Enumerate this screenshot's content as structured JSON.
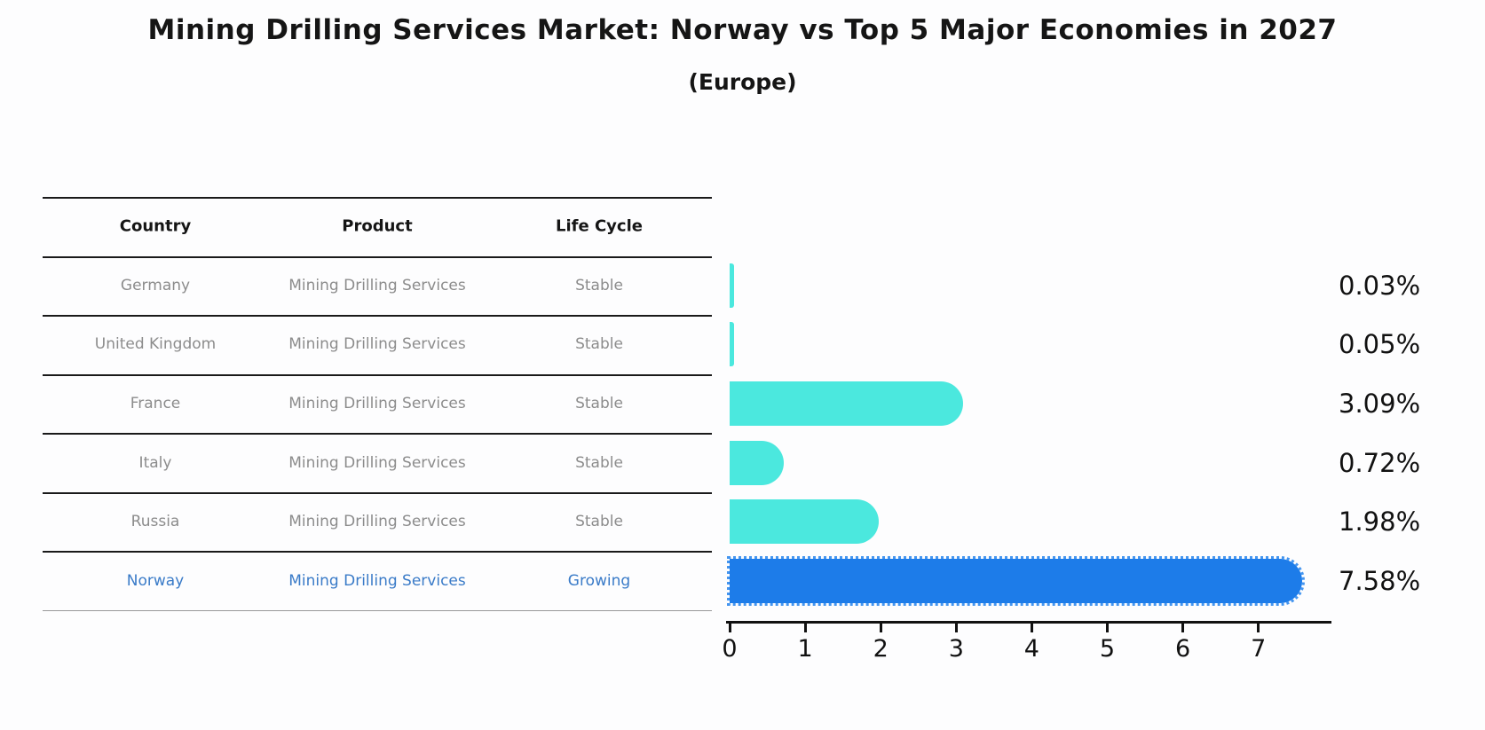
{
  "title": "Mining Drilling Services Market: Norway vs Top 5 Major Economies in 2027",
  "subtitle": "(Europe)",
  "table": {
    "headers": [
      "Country",
      "Product",
      "Life Cycle"
    ],
    "rows": [
      {
        "country": "Germany",
        "product": "Mining Drilling Services",
        "life_cycle": "Stable",
        "highlight": false
      },
      {
        "country": "United Kingdom",
        "product": "Mining Drilling Services",
        "life_cycle": "Stable",
        "highlight": false
      },
      {
        "country": "France",
        "product": "Mining Drilling Services",
        "life_cycle": "Stable",
        "highlight": false
      },
      {
        "country": "Italy",
        "product": "Mining Drilling Services",
        "life_cycle": "Stable",
        "highlight": false
      },
      {
        "country": "Russia",
        "product": "Mining Drilling Services",
        "life_cycle": "Stable",
        "highlight": false
      },
      {
        "country": "Norway",
        "product": "Mining Drilling Services",
        "life_cycle": "Growing",
        "highlight": true
      }
    ]
  },
  "chart_data": {
    "type": "bar",
    "orientation": "horizontal",
    "title": "Mining Drilling Services Market: Norway vs Top 5 Major Economies in 2027",
    "subtitle": "(Europe)",
    "categories": [
      "Germany",
      "United Kingdom",
      "France",
      "Italy",
      "Russia",
      "Norway"
    ],
    "values": [
      0.03,
      0.05,
      3.09,
      0.72,
      1.98,
      7.58
    ],
    "value_labels": [
      "0.03%",
      "0.05%",
      "3.09%",
      "0.72%",
      "1.98%",
      "7.58%"
    ],
    "x_ticks": [
      0,
      1,
      2,
      3,
      4,
      5,
      6,
      7
    ],
    "x_tick_labels": [
      "0",
      "1",
      "2",
      "3",
      "4",
      "5",
      "6",
      "7"
    ],
    "xlim": [
      0,
      8
    ],
    "grid": false,
    "legend": "none",
    "bar_color": "#4be8de",
    "highlight_bar_color": "#1d7ce9",
    "highlight_index": 5,
    "highlight_border_style": "dotted"
  },
  "colors": {
    "background": "#fdfdfe",
    "text": "#151515",
    "muted_text": "#8c8c8c",
    "highlight_text": "#3a7bc8",
    "rule": "#1a1a1a",
    "bottom_rule": "#999999",
    "bar": "#4be8de",
    "highlight_bar": "#1d7ce9"
  }
}
